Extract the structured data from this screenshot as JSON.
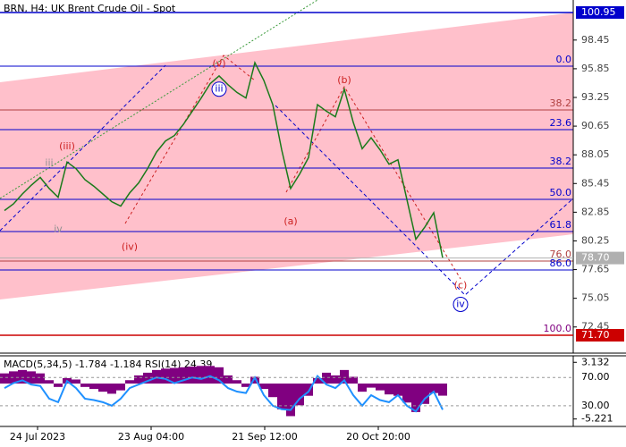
{
  "chart_data": {
    "type": "line",
    "title": "BRN, H4:  UK Brent Crude Oil - Spot",
    "series": [
      {
        "name": "BRN",
        "color": "#1a7a1a",
        "values": [
          83.0,
          83.6,
          84.5,
          85.3,
          86.0,
          85.0,
          84.2,
          87.4,
          86.8,
          85.8,
          85.2,
          84.5,
          83.8,
          83.4,
          84.6,
          85.5,
          86.8,
          88.3,
          89.3,
          89.8,
          90.8,
          92.0,
          93.2,
          94.5,
          95.2,
          94.4,
          93.7,
          93.2,
          96.4,
          94.8,
          92.6,
          88.5,
          85.0,
          86.3,
          87.8,
          92.6,
          92.0,
          91.5,
          94.0,
          91.0,
          88.6,
          89.6,
          88.5,
          87.2,
          87.6,
          84.0,
          80.4,
          81.5,
          82.8,
          78.7
        ]
      }
    ],
    "ylim": [
      70.08,
      102.08
    ],
    "yticks": [
      98.45,
      95.85,
      93.25,
      90.65,
      88.05,
      85.45,
      82.85,
      80.25,
      77.65,
      75.05,
      72.45
    ],
    "price_labels": [
      {
        "value": 100.95,
        "color": "#0000cc"
      },
      {
        "value": 78.7,
        "label": "78.70",
        "color": "#b0b0b0"
      },
      {
        "value": 71.7,
        "label": "71.70",
        "color": "#cc0000"
      }
    ],
    "fib_levels": [
      {
        "label": "0.0",
        "price": 96.09,
        "color": "#0000cc"
      },
      {
        "label": "38.2",
        "price": 92.12,
        "color": "#b04040"
      },
      {
        "label": "23.6",
        "price": 90.33,
        "color": "#0000cc"
      },
      {
        "label": "38.2",
        "price": 86.85,
        "color": "#0000cc"
      },
      {
        "label": "50.0",
        "price": 84.01,
        "color": "#0000cc"
      },
      {
        "label": "61.8",
        "price": 81.1,
        "color": "#0000cc"
      },
      {
        "label": "76.0",
        "price": 78.42,
        "color": "#b04040"
      },
      {
        "label": "86.0",
        "price": 77.61,
        "color": "#0000cc"
      },
      {
        "label": "100.0",
        "price": 71.7,
        "color": "#800080"
      }
    ],
    "wave_labels": [
      {
        "text": "iii",
        "price": 94.0,
        "index": 24,
        "color": "#0000cc",
        "circled": true
      },
      {
        "text": "(v)",
        "price": 96.3,
        "index": 24,
        "color": "#cc2020"
      },
      {
        "text": "(iii)",
        "price": 88.8,
        "index": 7,
        "color": "#cc2020"
      },
      {
        "text": "iii",
        "price": 87.3,
        "index": 5,
        "color": "#909090"
      },
      {
        "text": "iv",
        "price": 81.3,
        "index": 6,
        "color": "#909090"
      },
      {
        "text": "(iv)",
        "price": 79.7,
        "index": 14,
        "color": "#cc2020"
      },
      {
        "text": "(a)",
        "price": 82.0,
        "index": 32,
        "color": "#cc2020"
      },
      {
        "text": "(b)",
        "price": 94.8,
        "index": 38,
        "color": "#cc2020"
      },
      {
        "text": "(c)",
        "price": 76.2,
        "index": 51,
        "color": "#cc2020"
      },
      {
        "text": "iv",
        "price": 74.5,
        "index": 51,
        "color": "#0000cc",
        "circled": true
      }
    ],
    "x_labels": [
      "24 Jul 2023",
      "23 Aug 04:00",
      "21 Sep 12:00",
      "20 Oct 20:00"
    ],
    "indicator": {
      "label": "MACD(5,34,5) -1.784 -1.184 RSI(14) 24.39",
      "macd_ylim": [
        -6.32,
        4.09
      ],
      "macd_ticks": [
        3.132,
        -5.221
      ],
      "rsi_ylim": [
        0.67,
        100.67
      ],
      "rsi_ticks": [
        {
          "value": 70,
          "label": "70.00"
        },
        {
          "value": 30,
          "label": "30.00"
        }
      ],
      "macd": {
        "color": "#800080",
        "values": [
          1.5,
          1.8,
          2.0,
          1.8,
          1.5,
          0.5,
          -0.5,
          0.8,
          0.6,
          -0.5,
          -0.8,
          -1.2,
          -1.5,
          -1.0,
          0.5,
          1.2,
          1.6,
          2.0,
          2.2,
          2.3,
          2.4,
          2.5,
          2.6,
          2.6,
          2.4,
          1.2,
          0.5,
          -0.5,
          1.0,
          -0.8,
          -2.0,
          -3.8,
          -4.8,
          -3.2,
          -1.8,
          0.8,
          1.6,
          1.2,
          2.0,
          1.0,
          -1.2,
          -0.6,
          -1.0,
          -1.6,
          -1.8,
          -2.8,
          -4.2,
          -3.0,
          -1.4,
          -1.784
        ]
      },
      "rsi": {
        "color": "#1e90ff",
        "values": [
          55,
          62,
          66,
          60,
          58,
          40,
          35,
          65,
          55,
          40,
          38,
          35,
          30,
          40,
          55,
          60,
          65,
          70,
          68,
          62,
          66,
          70,
          68,
          72,
          66,
          55,
          50,
          48,
          70,
          45,
          30,
          25,
          24,
          40,
          50,
          72,
          60,
          55,
          66,
          45,
          30,
          45,
          38,
          35,
          45,
          30,
          22,
          40,
          50,
          24.39
        ]
      }
    }
  }
}
